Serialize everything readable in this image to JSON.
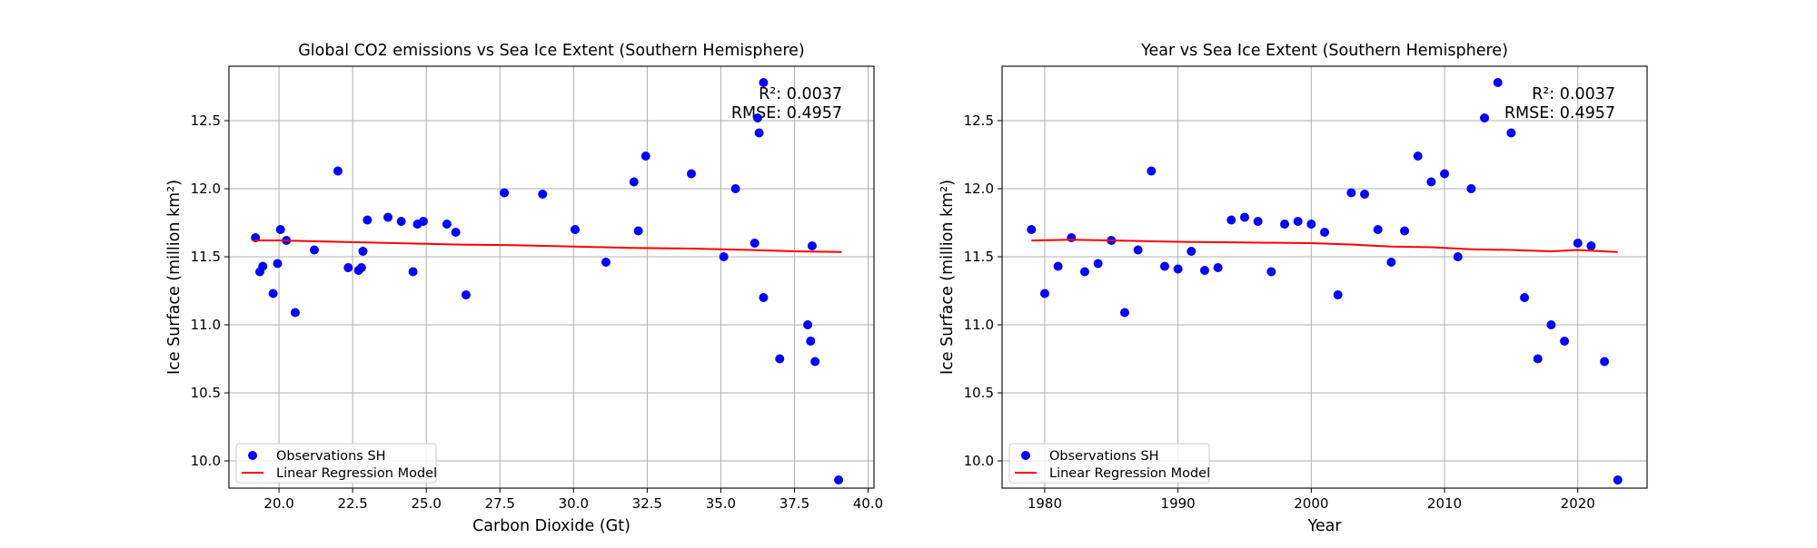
{
  "chart_data": [
    {
      "type": "scatter",
      "title": "Global CO2 emissions vs Sea Ice Extent (Southern Hemisphere)",
      "xlabel": "Carbon Dioxide (Gt)",
      "ylabel": "Ice Surface (million km²)",
      "xlim": [
        18.3,
        40.2
      ],
      "ylim": [
        9.8,
        12.9
      ],
      "xticks": [
        20.0,
        22.5,
        25.0,
        27.5,
        30.0,
        32.5,
        35.0,
        37.5,
        40.0
      ],
      "xtick_labels": [
        "20.0",
        "22.5",
        "25.0",
        "27.5",
        "30.0",
        "32.5",
        "35.0",
        "37.5",
        "40.0"
      ],
      "yticks": [
        10.0,
        10.5,
        11.0,
        11.5,
        12.0,
        12.5
      ],
      "ytick_labels": [
        "10.0",
        "10.5",
        "11.0",
        "11.5",
        "12.0",
        "12.5"
      ],
      "grid": true,
      "legend_position": "lower-left",
      "stats": [
        "R²: 0.0037",
        "RMSE: 0.4957"
      ],
      "series": [
        {
          "name": "Observations SH",
          "kind": "scatter",
          "color": "#0000ff",
          "points": [
            [
              19.2,
              11.64
            ],
            [
              19.35,
              11.39
            ],
            [
              19.45,
              11.43
            ],
            [
              19.8,
              11.23
            ],
            [
              19.95,
              11.45
            ],
            [
              20.05,
              11.7
            ],
            [
              20.25,
              11.62
            ],
            [
              20.55,
              11.09
            ],
            [
              21.2,
              11.55
            ],
            [
              22.0,
              12.13
            ],
            [
              22.35,
              11.42
            ],
            [
              22.7,
              11.4
            ],
            [
              22.8,
              11.42
            ],
            [
              22.85,
              11.54
            ],
            [
              23.0,
              11.77
            ],
            [
              23.7,
              11.79
            ],
            [
              24.15,
              11.76
            ],
            [
              24.55,
              11.39
            ],
            [
              24.7,
              11.74
            ],
            [
              24.9,
              11.76
            ],
            [
              25.7,
              11.74
            ],
            [
              26.0,
              11.68
            ],
            [
              26.35,
              11.22
            ],
            [
              27.65,
              11.97
            ],
            [
              28.95,
              11.96
            ],
            [
              30.05,
              11.7
            ],
            [
              31.1,
              11.46
            ],
            [
              32.05,
              12.05
            ],
            [
              32.2,
              11.69
            ],
            [
              32.45,
              12.24
            ],
            [
              34.0,
              12.11
            ],
            [
              35.1,
              11.5
            ],
            [
              35.5,
              12.0
            ],
            [
              36.15,
              11.6
            ],
            [
              36.25,
              12.52
            ],
            [
              36.3,
              12.41
            ],
            [
              36.45,
              12.78
            ],
            [
              36.45,
              11.2
            ],
            [
              37.0,
              10.75
            ],
            [
              37.95,
              11.0
            ],
            [
              38.05,
              10.88
            ],
            [
              38.1,
              11.58
            ],
            [
              38.2,
              10.73
            ],
            [
              39.0,
              9.86
            ]
          ]
        },
        {
          "name": "Linear Regression Model",
          "kind": "line",
          "color": "#ff0000",
          "points": [
            [
              19.1,
              11.62
            ],
            [
              20.0,
              11.62
            ],
            [
              22.0,
              11.61
            ],
            [
              24.0,
              11.6
            ],
            [
              26.0,
              11.59
            ],
            [
              28.0,
              11.585
            ],
            [
              30.0,
              11.575
            ],
            [
              32.0,
              11.565
            ],
            [
              34.0,
              11.56
            ],
            [
              36.0,
              11.55
            ],
            [
              37.5,
              11.54
            ],
            [
              39.1,
              11.535
            ]
          ]
        }
      ]
    },
    {
      "type": "scatter",
      "title": "Year vs Sea Ice Extent (Southern Hemisphere)",
      "xlabel": "Year",
      "ylabel": "Ice Surface (million km²)",
      "xlim": [
        1976.8,
        2025.2
      ],
      "ylim": [
        9.8,
        12.9
      ],
      "xticks": [
        1980,
        1990,
        2000,
        2010,
        2020
      ],
      "xtick_labels": [
        "1980",
        "1990",
        "2000",
        "2010",
        "2020"
      ],
      "yticks": [
        10.0,
        10.5,
        11.0,
        11.5,
        12.0,
        12.5
      ],
      "ytick_labels": [
        "10.0",
        "10.5",
        "11.0",
        "11.5",
        "12.0",
        "12.5"
      ],
      "grid": true,
      "legend_position": "lower-left",
      "stats": [
        "R²: 0.0037",
        "RMSE: 0.4957"
      ],
      "series": [
        {
          "name": "Observations SH",
          "kind": "scatter",
          "color": "#0000ff",
          "points": [
            [
              1979,
              11.7
            ],
            [
              1980,
              11.23
            ],
            [
              1981,
              11.43
            ],
            [
              1982,
              11.64
            ],
            [
              1983,
              11.39
            ],
            [
              1984,
              11.45
            ],
            [
              1985,
              11.62
            ],
            [
              1986,
              11.09
            ],
            [
              1987,
              11.55
            ],
            [
              1988,
              12.13
            ],
            [
              1989,
              11.43
            ],
            [
              1990,
              11.41
            ],
            [
              1991,
              11.54
            ],
            [
              1992,
              11.4
            ],
            [
              1993,
              11.42
            ],
            [
              1994,
              11.77
            ],
            [
              1995,
              11.79
            ],
            [
              1996,
              11.76
            ],
            [
              1997,
              11.39
            ],
            [
              1998,
              11.74
            ],
            [
              1999,
              11.76
            ],
            [
              2000,
              11.74
            ],
            [
              2001,
              11.68
            ],
            [
              2002,
              11.22
            ],
            [
              2003,
              11.97
            ],
            [
              2004,
              11.96
            ],
            [
              2005,
              11.7
            ],
            [
              2006,
              11.46
            ],
            [
              2007,
              11.69
            ],
            [
              2008,
              12.24
            ],
            [
              2009,
              12.05
            ],
            [
              2010,
              12.11
            ],
            [
              2011,
              11.5
            ],
            [
              2012,
              12.0
            ],
            [
              2013,
              12.52
            ],
            [
              2014,
              12.78
            ],
            [
              2015,
              12.41
            ],
            [
              2016,
              11.2
            ],
            [
              2017,
              10.75
            ],
            [
              2018,
              11.0
            ],
            [
              2019,
              10.88
            ],
            [
              2020,
              11.6
            ],
            [
              2021,
              11.58
            ],
            [
              2022,
              10.73
            ],
            [
              2023,
              9.86
            ]
          ]
        },
        {
          "name": "Linear Regression Model",
          "kind": "line",
          "color": "#ff0000",
          "points": [
            [
              1979,
              11.62
            ],
            [
              1982,
              11.625
            ],
            [
              1985,
              11.62
            ],
            [
              1990,
              11.61
            ],
            [
              1995,
              11.605
            ],
            [
              2000,
              11.6
            ],
            [
              2003,
              11.59
            ],
            [
              2006,
              11.575
            ],
            [
              2009,
              11.57
            ],
            [
              2012,
              11.555
            ],
            [
              2015,
              11.55
            ],
            [
              2018,
              11.54
            ],
            [
              2020,
              11.55
            ],
            [
              2023,
              11.535
            ]
          ]
        }
      ]
    }
  ]
}
